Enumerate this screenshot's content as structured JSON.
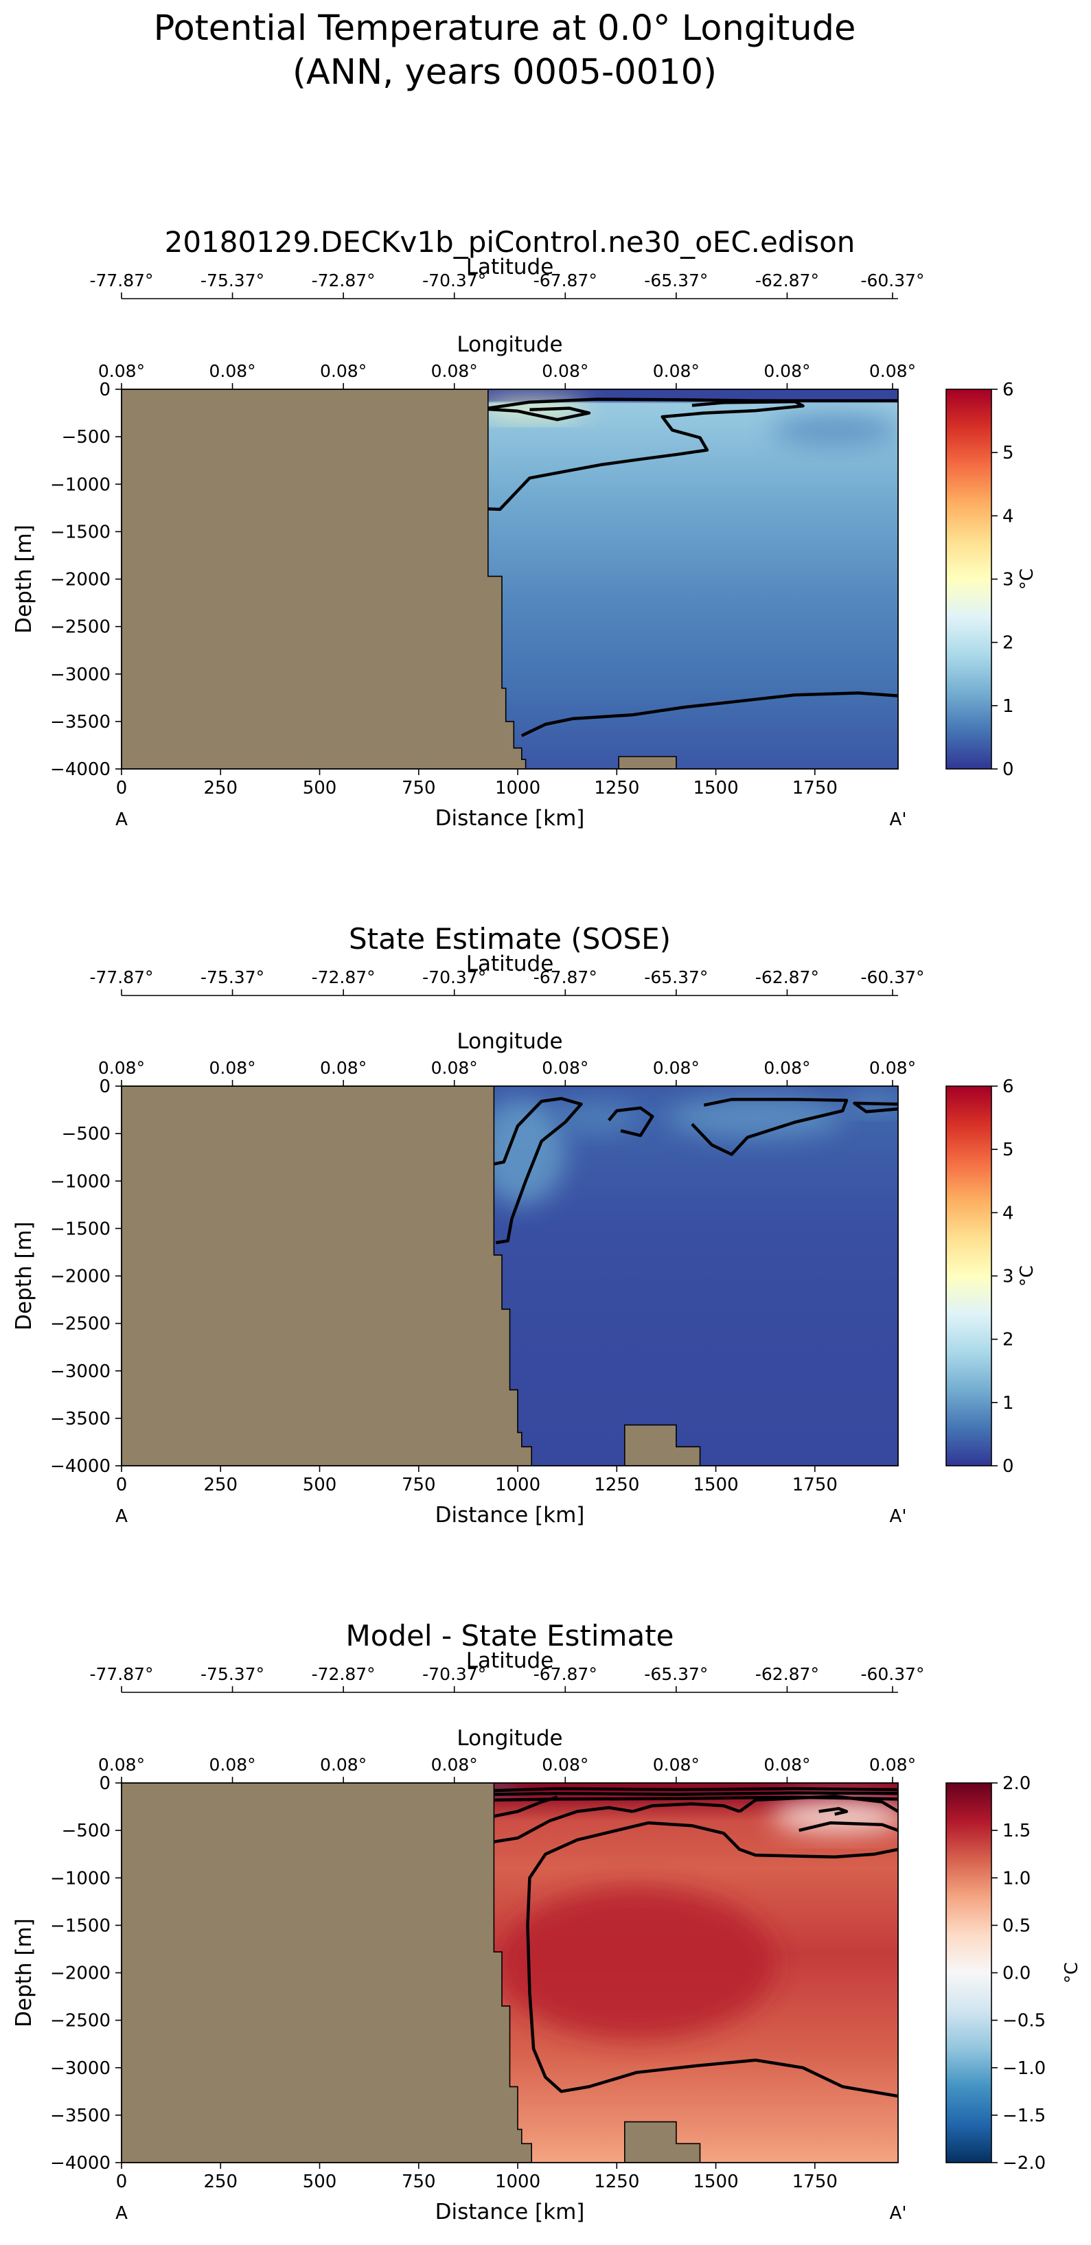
{
  "figure": {
    "title_line1": "Potential Temperature at 0.0° Longitude",
    "title_line2": "(ANN, years 0005-0010)"
  },
  "colors": {
    "land": "#918166",
    "contour": "#000000",
    "temp_colormap": [
      "#313695",
      "#4575b4",
      "#74add1",
      "#abd9e9",
      "#e0f3f8",
      "#ffffbf",
      "#fee090",
      "#fdae61",
      "#f46d43",
      "#d73027",
      "#a50026"
    ],
    "diff_colormap": [
      "#053061",
      "#2166ac",
      "#4393c3",
      "#92c5de",
      "#d1e5f0",
      "#f7f7f7",
      "#fddbc7",
      "#f4a582",
      "#d6604d",
      "#b2182b",
      "#67001f"
    ]
  },
  "chart_data": [
    {
      "type": "heatmap",
      "title": "20180129.DECKv1b_piControl.ne30_oEC.edison",
      "xlabel": "Distance [km]",
      "ylabel": "Depth [m]",
      "top_axis_1_label": "Latitude",
      "top_axis_2_label": "Longitude",
      "xlim": [
        0,
        1960
      ],
      "ylim": [
        -4000,
        0
      ],
      "x_ticks": [
        0,
        250,
        500,
        750,
        1000,
        1250,
        1500,
        1750
      ],
      "y_ticks": [
        0,
        -500,
        -1000,
        -1500,
        -2000,
        -2500,
        -3000,
        -3500,
        -4000
      ],
      "lat_ticks": [
        "-77.87°",
        "-75.37°",
        "-72.87°",
        "-70.37°",
        "-67.87°",
        "-65.37°",
        "-62.87°",
        "-60.37°"
      ],
      "lon_ticks": [
        "0.08°",
        "0.08°",
        "0.08°",
        "0.08°",
        "0.08°",
        "0.08°",
        "0.08°",
        "0.08°"
      ],
      "left_label": "A",
      "right_label": "A'",
      "colorbar": {
        "label": "°C",
        "vmin": 0,
        "vmax": 6,
        "ticks": [
          "0",
          "1",
          "2",
          "3",
          "4",
          "5",
          "6"
        ],
        "colormap": "temp"
      },
      "land_profile": [
        [
          0,
          0
        ],
        [
          925,
          0
        ],
        [
          925,
          -1970
        ],
        [
          960,
          -1970
        ],
        [
          960,
          -3150
        ],
        [
          970,
          -3150
        ],
        [
          970,
          -3500
        ],
        [
          990,
          -3500
        ],
        [
          990,
          -3780
        ],
        [
          1010,
          -3780
        ],
        [
          1010,
          -3900
        ],
        [
          1020,
          -3900
        ],
        [
          1020,
          -4000
        ],
        [
          0,
          -4000
        ]
      ],
      "seamounts": [
        [
          [
            1255,
            -4000
          ],
          [
            1255,
            -3870
          ],
          [
            1400,
            -3870
          ],
          [
            1400,
            -4000
          ]
        ]
      ],
      "field_stops": [
        [
          0,
          0.15
        ],
        [
          120,
          0.15
        ],
        [
          150,
          1.6
        ],
        [
          400,
          1.5
        ],
        [
          1200,
          1.15
        ],
        [
          2200,
          0.8
        ],
        [
          3200,
          0.55
        ],
        [
          4000,
          0.3
        ]
      ],
      "blobs": [
        {
          "x": 1035,
          "depth": 200,
          "rx": 140,
          "ry": 100,
          "value": 3.0
        },
        {
          "x": 1800,
          "depth": 430,
          "rx": 160,
          "ry": 170,
          "value": 0.9
        }
      ],
      "contours": [
        [
          [
            925,
            -200
          ],
          [
            1030,
            -135
          ],
          [
            1200,
            -105
          ],
          [
            1400,
            -110
          ],
          [
            1600,
            -120
          ],
          [
            1960,
            -120
          ]
        ],
        [
          [
            925,
            -210
          ],
          [
            1000,
            -230
          ],
          [
            1100,
            -320
          ],
          [
            1180,
            -250
          ],
          [
            1130,
            -200
          ],
          [
            1030,
            -215
          ]
        ],
        [
          [
            1440,
            -170
          ],
          [
            1520,
            -140
          ],
          [
            1700,
            -130
          ],
          [
            1720,
            -175
          ],
          [
            1600,
            -225
          ],
          [
            1470,
            -250
          ],
          [
            1365,
            -290
          ],
          [
            1390,
            -430
          ],
          [
            1460,
            -510
          ],
          [
            1478,
            -640
          ],
          [
            1405,
            -685
          ],
          [
            1305,
            -740
          ],
          [
            1210,
            -795
          ],
          [
            1120,
            -865
          ],
          [
            1030,
            -935
          ],
          [
            955,
            -1265
          ],
          [
            925,
            -1260
          ]
        ],
        [
          [
            1010,
            -3650
          ],
          [
            1070,
            -3530
          ],
          [
            1140,
            -3470
          ],
          [
            1290,
            -3430
          ],
          [
            1420,
            -3350
          ],
          [
            1530,
            -3300
          ],
          [
            1700,
            -3220
          ],
          [
            1860,
            -3200
          ],
          [
            1960,
            -3230
          ]
        ]
      ]
    },
    {
      "type": "heatmap",
      "title": "State Estimate (SOSE)",
      "xlabel": "Distance [km]",
      "ylabel": "Depth [m]",
      "top_axis_1_label": "Latitude",
      "top_axis_2_label": "Longitude",
      "xlim": [
        0,
        1960
      ],
      "ylim": [
        -4000,
        0
      ],
      "x_ticks": [
        0,
        250,
        500,
        750,
        1000,
        1250,
        1500,
        1750
      ],
      "y_ticks": [
        0,
        -500,
        -1000,
        -1500,
        -2000,
        -2500,
        -3000,
        -3500,
        -4000
      ],
      "lat_ticks": [
        "-77.87°",
        "-75.37°",
        "-72.87°",
        "-70.37°",
        "-67.87°",
        "-65.37°",
        "-62.87°",
        "-60.37°"
      ],
      "lon_ticks": [
        "0.08°",
        "0.08°",
        "0.08°",
        "0.08°",
        "0.08°",
        "0.08°",
        "0.08°",
        "0.08°"
      ],
      "left_label": "A",
      "right_label": "A'",
      "colorbar": {
        "label": "°C",
        "vmin": 0,
        "vmax": 6,
        "ticks": [
          "0",
          "1",
          "2",
          "3",
          "4",
          "5",
          "6"
        ],
        "colormap": "temp"
      },
      "land_profile": [
        [
          0,
          0
        ],
        [
          940,
          0
        ],
        [
          940,
          -1780
        ],
        [
          960,
          -1780
        ],
        [
          960,
          -2350
        ],
        [
          980,
          -2350
        ],
        [
          980,
          -3200
        ],
        [
          1000,
          -3200
        ],
        [
          1000,
          -3650
        ],
        [
          1010,
          -3650
        ],
        [
          1010,
          -3800
        ],
        [
          1035,
          -3800
        ],
        [
          1035,
          -4000
        ],
        [
          0,
          -4000
        ]
      ],
      "seamounts": [
        [
          [
            1270,
            -4000
          ],
          [
            1270,
            -3570
          ],
          [
            1400,
            -3570
          ],
          [
            1400,
            -3800
          ],
          [
            1460,
            -3800
          ],
          [
            1460,
            -4000
          ]
        ]
      ],
      "field_stops": [
        [
          0,
          0.35
        ],
        [
          300,
          0.45
        ],
        [
          800,
          0.35
        ],
        [
          1500,
          0.25
        ],
        [
          2500,
          0.2
        ],
        [
          4000,
          0.18
        ]
      ],
      "blobs": [
        {
          "x": 1010,
          "depth": 700,
          "rx": 110,
          "ry": 550,
          "value": 1.0
        },
        {
          "x": 1200,
          "depth": 330,
          "rx": 100,
          "ry": 150,
          "value": 0.75
        },
        {
          "x": 1600,
          "depth": 330,
          "rx": 220,
          "ry": 220,
          "value": 0.9
        },
        {
          "x": 1900,
          "depth": 170,
          "rx": 80,
          "ry": 100,
          "value": 0.85
        }
      ],
      "contours": [
        [
          [
            940,
            -820
          ],
          [
            965,
            -800
          ],
          [
            1000,
            -420
          ],
          [
            1060,
            -160
          ],
          [
            1110,
            -130
          ],
          [
            1160,
            -190
          ],
          [
            1120,
            -380
          ],
          [
            1060,
            -580
          ],
          [
            1020,
            -1000
          ],
          [
            985,
            -1400
          ],
          [
            975,
            -1630
          ],
          [
            945,
            -1650
          ]
        ],
        [
          [
            1230,
            -360
          ],
          [
            1250,
            -260
          ],
          [
            1310,
            -230
          ],
          [
            1340,
            -320
          ],
          [
            1310,
            -520
          ],
          [
            1260,
            -470
          ]
        ],
        [
          [
            1470,
            -200
          ],
          [
            1540,
            -140
          ],
          [
            1700,
            -140
          ],
          [
            1830,
            -150
          ],
          [
            1820,
            -260
          ],
          [
            1700,
            -380
          ],
          [
            1580,
            -540
          ],
          [
            1540,
            -720
          ],
          [
            1490,
            -620
          ],
          [
            1440,
            -400
          ]
        ],
        [
          [
            1960,
            -240
          ],
          [
            1880,
            -270
          ],
          [
            1850,
            -180
          ],
          [
            1960,
            -190
          ]
        ]
      ]
    },
    {
      "type": "heatmap",
      "title": "Model - State Estimate",
      "xlabel": "Distance [km]",
      "ylabel": "Depth [m]",
      "top_axis_1_label": "Latitude",
      "top_axis_2_label": "Longitude",
      "xlim": [
        0,
        1960
      ],
      "ylim": [
        -4000,
        0
      ],
      "x_ticks": [
        0,
        250,
        500,
        750,
        1000,
        1250,
        1500,
        1750
      ],
      "y_ticks": [
        0,
        -500,
        -1000,
        -1500,
        -2000,
        -2500,
        -3000,
        -3500,
        -4000
      ],
      "lat_ticks": [
        "-77.87°",
        "-75.37°",
        "-72.87°",
        "-70.37°",
        "-67.87°",
        "-65.37°",
        "-62.87°",
        "-60.37°"
      ],
      "lon_ticks": [
        "0.08°",
        "0.08°",
        "0.08°",
        "0.08°",
        "0.08°",
        "0.08°",
        "0.08°",
        "0.08°"
      ],
      "left_label": "A",
      "right_label": "A'",
      "colorbar": {
        "label": "°C",
        "vmin": -2,
        "vmax": 2,
        "ticks": [
          "−2.0",
          "−1.5",
          "−1.0",
          "−0.5",
          "0.0",
          "0.5",
          "1.0",
          "1.5",
          "2.0"
        ],
        "colormap": "diff"
      },
      "land_profile": [
        [
          0,
          0
        ],
        [
          940,
          0
        ],
        [
          940,
          -1780
        ],
        [
          960,
          -1780
        ],
        [
          960,
          -2350
        ],
        [
          980,
          -2350
        ],
        [
          980,
          -3200
        ],
        [
          1000,
          -3200
        ],
        [
          1000,
          -3650
        ],
        [
          1010,
          -3650
        ],
        [
          1010,
          -3800
        ],
        [
          1035,
          -3800
        ],
        [
          1035,
          -4000
        ],
        [
          0,
          -4000
        ]
      ],
      "seamounts": [
        [
          [
            1270,
            -4000
          ],
          [
            1270,
            -3570
          ],
          [
            1400,
            -3570
          ],
          [
            1400,
            -3800
          ],
          [
            1460,
            -3800
          ],
          [
            1460,
            -4000
          ]
        ]
      ],
      "field_stops": [
        [
          0,
          1.8
        ],
        [
          120,
          1.75
        ],
        [
          400,
          1.3
        ],
        [
          900,
          1.2
        ],
        [
          1800,
          1.4
        ],
        [
          2800,
          1.2
        ],
        [
          3600,
          0.95
        ],
        [
          4000,
          0.8
        ]
      ],
      "blobs": [
        {
          "x": 1810,
          "depth": 350,
          "rx": 170,
          "ry": 170,
          "value": 0.1
        },
        {
          "x": 1300,
          "depth": 1900,
          "rx": 350,
          "ry": 800,
          "value": 1.55
        },
        {
          "x": 950,
          "depth": 60,
          "rx": 40,
          "ry": 60,
          "value": -1.2
        }
      ],
      "contours": [
        [
          [
            940,
            -80
          ],
          [
            1100,
            -60
          ],
          [
            1400,
            -70
          ],
          [
            1700,
            -60
          ],
          [
            1960,
            -70
          ]
        ],
        [
          [
            940,
            -120
          ],
          [
            1100,
            -110
          ],
          [
            1400,
            -120
          ],
          [
            1700,
            -105
          ],
          [
            1960,
            -110
          ]
        ],
        [
          [
            940,
            -180
          ],
          [
            1100,
            -170
          ],
          [
            1400,
            -165
          ],
          [
            1700,
            -150
          ],
          [
            1960,
            -170
          ]
        ],
        [
          [
            940,
            -350
          ],
          [
            1000,
            -300
          ],
          [
            1060,
            -200
          ],
          [
            1100,
            -150
          ]
        ],
        [
          [
            940,
            -620
          ],
          [
            1000,
            -580
          ],
          [
            1080,
            -400
          ],
          [
            1150,
            -300
          ],
          [
            1230,
            -260
          ],
          [
            1290,
            -300
          ]
        ],
        [
          [
            1290,
            -300
          ],
          [
            1340,
            -240
          ],
          [
            1440,
            -220
          ],
          [
            1520,
            -240
          ],
          [
            1560,
            -300
          ]
        ],
        [
          [
            1560,
            -300
          ],
          [
            1600,
            -180
          ],
          [
            1800,
            -140
          ],
          [
            1920,
            -200
          ],
          [
            1960,
            -300
          ]
        ],
        [
          [
            1960,
            -700
          ],
          [
            1900,
            -750
          ],
          [
            1800,
            -780
          ],
          [
            1700,
            -770
          ],
          [
            1600,
            -760
          ],
          [
            1560,
            -700
          ],
          [
            1520,
            -530
          ],
          [
            1440,
            -450
          ],
          [
            1330,
            -420
          ],
          [
            1150,
            -600
          ],
          [
            1070,
            -750
          ],
          [
            1030,
            -1000
          ],
          [
            1025,
            -1500
          ],
          [
            1030,
            -2200
          ],
          [
            1040,
            -2800
          ],
          [
            1070,
            -3100
          ],
          [
            1110,
            -3250
          ],
          [
            1180,
            -3200
          ],
          [
            1300,
            -3050
          ],
          [
            1450,
            -2980
          ],
          [
            1600,
            -2920
          ],
          [
            1720,
            -3000
          ],
          [
            1820,
            -3200
          ],
          [
            1960,
            -3300
          ]
        ],
        [
          [
            1710,
            -500
          ],
          [
            1790,
            -420
          ],
          [
            1920,
            -440
          ],
          [
            1960,
            -500
          ]
        ],
        [
          [
            1760,
            -300
          ],
          [
            1810,
            -270
          ],
          [
            1830,
            -300
          ],
          [
            1800,
            -330
          ]
        ]
      ]
    }
  ]
}
